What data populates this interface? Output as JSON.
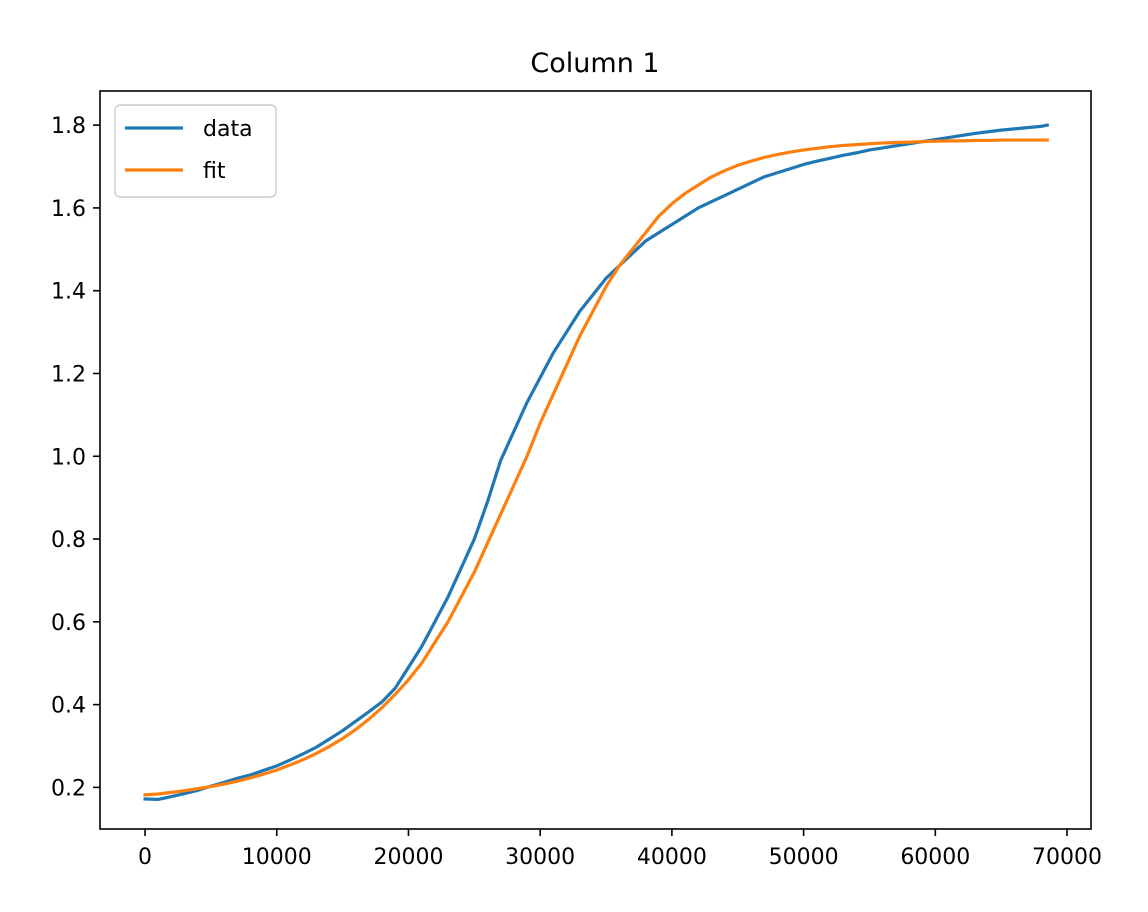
{
  "chart_data": {
    "type": "line",
    "title": "Column 1",
    "xlabel": "",
    "ylabel": "",
    "xlim": [
      -3420,
      71820
    ],
    "ylim": [
      0.0995,
      1.8825
    ],
    "x_ticks": [
      0,
      10000,
      20000,
      30000,
      40000,
      50000,
      60000,
      70000
    ],
    "y_ticks": [
      0.2,
      0.4,
      0.6,
      0.8,
      1.0,
      1.2,
      1.4,
      1.6,
      1.8
    ],
    "x_tick_labels": [
      "0",
      "10000",
      "20000",
      "30000",
      "40000",
      "50000",
      "60000",
      "70000"
    ],
    "y_tick_labels": [
      "0.2",
      "0.4",
      "0.6",
      "0.8",
      "1.0",
      "1.2",
      "1.4",
      "1.6",
      "1.8"
    ],
    "legend_position": "upper-left",
    "grid": false,
    "series": [
      {
        "name": "data",
        "color": "#1f77b4",
        "x": [
          0,
          1000,
          2000,
          3000,
          4000,
          5000,
          6000,
          7000,
          8000,
          9000,
          10000,
          11000,
          12000,
          13000,
          14000,
          15000,
          16000,
          17000,
          18000,
          19000,
          20000,
          21000,
          22000,
          23000,
          24000,
          25000,
          26000,
          27000,
          28000,
          29000,
          30000,
          31000,
          32000,
          33000,
          34000,
          35000,
          36000,
          37000,
          38000,
          39000,
          40000,
          41000,
          42000,
          43000,
          44000,
          45000,
          46000,
          47000,
          48000,
          49000,
          50000,
          51000,
          52000,
          53000,
          54000,
          55000,
          56000,
          57000,
          58000,
          59000,
          60000,
          61000,
          62000,
          63000,
          64000,
          65000,
          66000,
          67000,
          68000,
          68500
        ],
        "y": [
          0.172,
          0.171,
          0.178,
          0.185,
          0.193,
          0.203,
          0.212,
          0.222,
          0.23,
          0.241,
          0.252,
          0.266,
          0.281,
          0.297,
          0.317,
          0.337,
          0.36,
          0.383,
          0.407,
          0.44,
          0.49,
          0.54,
          0.6,
          0.66,
          0.73,
          0.8,
          0.89,
          0.99,
          1.06,
          1.13,
          1.19,
          1.25,
          1.3,
          1.35,
          1.39,
          1.43,
          1.46,
          1.49,
          1.52,
          1.54,
          1.56,
          1.58,
          1.6,
          1.615,
          1.63,
          1.645,
          1.66,
          1.675,
          1.685,
          1.695,
          1.705,
          1.713,
          1.72,
          1.727,
          1.733,
          1.74,
          1.745,
          1.75,
          1.755,
          1.76,
          1.765,
          1.77,
          1.775,
          1.78,
          1.784,
          1.788,
          1.791,
          1.794,
          1.797,
          1.8
        ]
      },
      {
        "name": "fit",
        "color": "#ff7f0e",
        "x": [
          0,
          1000,
          2000,
          3000,
          4000,
          5000,
          6000,
          7000,
          8000,
          9000,
          10000,
          11000,
          12000,
          13000,
          14000,
          15000,
          16000,
          17000,
          18000,
          19000,
          20000,
          21000,
          22000,
          23000,
          24000,
          25000,
          26000,
          27000,
          28000,
          29000,
          30000,
          31000,
          32000,
          33000,
          34000,
          35000,
          36000,
          37000,
          38000,
          39000,
          40000,
          41000,
          42000,
          43000,
          44000,
          45000,
          46000,
          47000,
          48000,
          49000,
          50000,
          51000,
          52000,
          53000,
          54000,
          55000,
          56000,
          57000,
          58000,
          59000,
          60000,
          61000,
          62000,
          63000,
          64000,
          65000,
          66000,
          67000,
          68000,
          68500
        ],
        "y": [
          0.182,
          0.184,
          0.188,
          0.192,
          0.197,
          0.202,
          0.208,
          0.215,
          0.223,
          0.232,
          0.242,
          0.254,
          0.267,
          0.282,
          0.299,
          0.318,
          0.34,
          0.365,
          0.393,
          0.425,
          0.46,
          0.5,
          0.55,
          0.6,
          0.66,
          0.72,
          0.79,
          0.86,
          0.93,
          1.0,
          1.08,
          1.15,
          1.22,
          1.29,
          1.35,
          1.41,
          1.46,
          1.5,
          1.54,
          1.58,
          1.61,
          1.635,
          1.655,
          1.675,
          1.69,
          1.703,
          1.713,
          1.722,
          1.729,
          1.735,
          1.74,
          1.744,
          1.748,
          1.751,
          1.753,
          1.755,
          1.757,
          1.758,
          1.759,
          1.76,
          1.761,
          1.762,
          1.762,
          1.763,
          1.763,
          1.764,
          1.764,
          1.764,
          1.764,
          1.764
        ]
      }
    ]
  }
}
